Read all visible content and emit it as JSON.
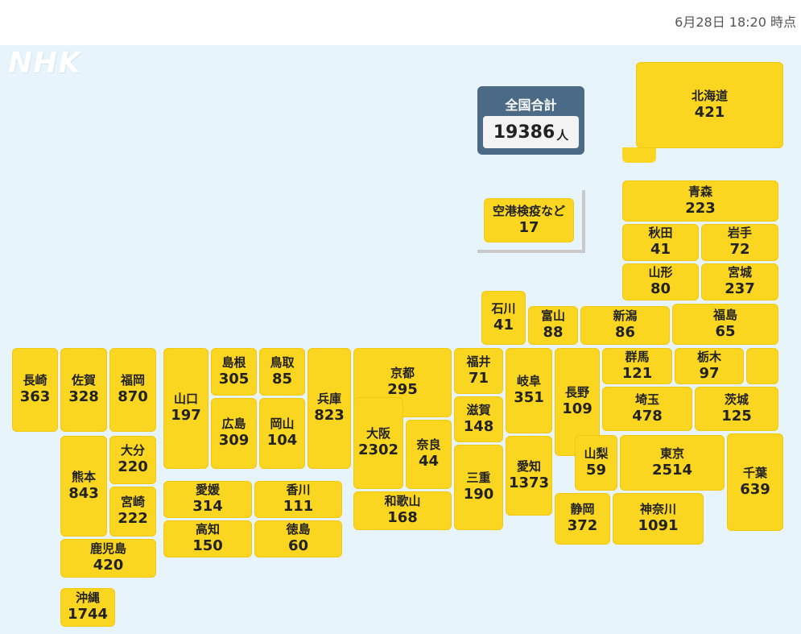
{
  "timestamp": "6月28日 18:20 時点",
  "logo": "NHK",
  "total": {
    "label": "全国合計",
    "value": "19386",
    "unit": "人"
  },
  "airport": {
    "name": "空港検疫など",
    "value": "17"
  },
  "colors": {
    "tile": "#fad620",
    "background": "#e8f4fb",
    "total_box": "#4a6a85"
  },
  "prefectures": {
    "hokkaido": {
      "name": "北海道",
      "value": "421"
    },
    "aomori": {
      "name": "青森",
      "value": "223"
    },
    "akita": {
      "name": "秋田",
      "value": "41"
    },
    "iwate": {
      "name": "岩手",
      "value": "72"
    },
    "yamagata": {
      "name": "山形",
      "value": "80"
    },
    "miyagi": {
      "name": "宮城",
      "value": "237"
    },
    "ishikawa": {
      "name": "石川",
      "value": "41"
    },
    "toyama": {
      "name": "富山",
      "value": "88"
    },
    "niigata": {
      "name": "新潟",
      "value": "86"
    },
    "fukushima": {
      "name": "福島",
      "value": "65"
    },
    "nagasaki": {
      "name": "長崎",
      "value": "363"
    },
    "saga": {
      "name": "佐賀",
      "value": "328"
    },
    "fukuoka": {
      "name": "福岡",
      "value": "870"
    },
    "yamaguchi": {
      "name": "山口",
      "value": "197"
    },
    "shimane": {
      "name": "島根",
      "value": "305"
    },
    "tottori": {
      "name": "鳥取",
      "value": "85"
    },
    "hyogo": {
      "name": "兵庫",
      "value": "823"
    },
    "kyoto": {
      "name": "京都",
      "value": "295"
    },
    "fukui": {
      "name": "福井",
      "value": "71"
    },
    "gifu": {
      "name": "岐阜",
      "value": "351"
    },
    "nagano": {
      "name": "長野",
      "value": "109"
    },
    "gunma": {
      "name": "群馬",
      "value": "121"
    },
    "tochigi": {
      "name": "栃木",
      "value": "97"
    },
    "saitama": {
      "name": "埼玉",
      "value": "478"
    },
    "ibaraki": {
      "name": "茨城",
      "value": "125"
    },
    "hiroshima": {
      "name": "広島",
      "value": "309"
    },
    "okayama": {
      "name": "岡山",
      "value": "104"
    },
    "osaka": {
      "name": "大阪",
      "value": "2302"
    },
    "nara": {
      "name": "奈良",
      "value": "44"
    },
    "shiga": {
      "name": "滋賀",
      "value": "148"
    },
    "kumamoto": {
      "name": "熊本",
      "value": "843"
    },
    "oita": {
      "name": "大分",
      "value": "220"
    },
    "miyazaki": {
      "name": "宮崎",
      "value": "222"
    },
    "ehime": {
      "name": "愛媛",
      "value": "314"
    },
    "kagawa": {
      "name": "香川",
      "value": "111"
    },
    "mie": {
      "name": "三重",
      "value": "190"
    },
    "aichi": {
      "name": "愛知",
      "value": "1373"
    },
    "yamanashi": {
      "name": "山梨",
      "value": "59"
    },
    "tokyo": {
      "name": "東京",
      "value": "2514"
    },
    "chiba": {
      "name": "千葉",
      "value": "639"
    },
    "wakayama": {
      "name": "和歌山",
      "value": "168"
    },
    "kochi": {
      "name": "高知",
      "value": "150"
    },
    "tokushima": {
      "name": "徳島",
      "value": "60"
    },
    "shizuoka": {
      "name": "静岡",
      "value": "372"
    },
    "kanagawa": {
      "name": "神奈川",
      "value": "1091"
    },
    "kagoshima": {
      "name": "鹿児島",
      "value": "420"
    },
    "okinawa": {
      "name": "沖縄",
      "value": "1744"
    }
  }
}
